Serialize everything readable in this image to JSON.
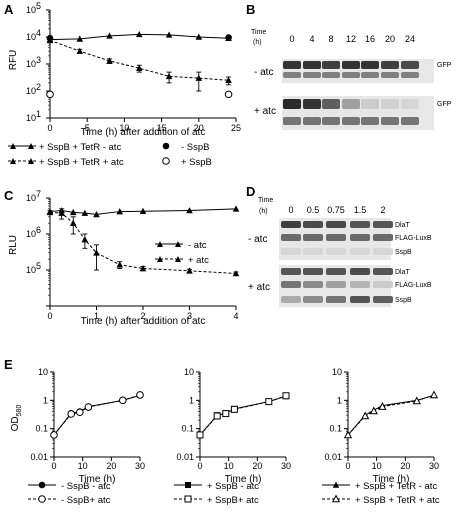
{
  "panels": {
    "A": {
      "label": "A",
      "ylabel": "RFU",
      "xlabel": "Time (h) after addition of atc",
      "xticks": [
        "0",
        "5",
        "10",
        "15",
        "20",
        "25"
      ],
      "yticks": [
        {
          "base": "10",
          "exp": "1"
        },
        {
          "base": "10",
          "exp": "2"
        },
        {
          "base": "10",
          "exp": "3"
        },
        {
          "base": "10",
          "exp": "4"
        },
        {
          "base": "10",
          "exp": "5"
        }
      ]
    },
    "B": {
      "label": "B",
      "time_label": "Time",
      "time_unit": "(h)",
      "times": [
        "0",
        "4",
        "8",
        "12",
        "16",
        "20",
        "24"
      ],
      "conditions": [
        "- atc",
        "+ atc"
      ],
      "band_label": "GFP"
    },
    "C": {
      "label": "C",
      "ylabel": "RLU",
      "xlabel": "Time (h) after addition of atc",
      "xticks": [
        "0",
        "1",
        "2",
        "3",
        "4"
      ],
      "yticks": [
        {
          "base": "10",
          "exp": "5"
        },
        {
          "base": "10",
          "exp": "6"
        },
        {
          "base": "10",
          "exp": "7"
        }
      ]
    },
    "D": {
      "label": "D",
      "time_label": "Time",
      "time_unit": "(h)",
      "times": [
        "0",
        "0.5",
        "0.75",
        "1.5",
        "2"
      ],
      "conditions": [
        "- atc",
        "+ atc"
      ],
      "bands": [
        "DlaT",
        "FLAG-LuxB",
        "SspB"
      ]
    },
    "E": {
      "label": "E",
      "ylabel_main": "OD",
      "ylabel_sub": "580",
      "xlabel": "Time (h)",
      "xticks": [
        "0",
        "10",
        "20",
        "30"
      ],
      "yticks": [
        "0.01",
        "0.1",
        "1",
        "10"
      ]
    }
  },
  "chart_data": [
    {
      "id": "A",
      "type": "line",
      "yscale": "log",
      "xlim": [
        0,
        25
      ],
      "ylim": [
        10,
        100000
      ],
      "series": [
        {
          "name": "+ SspB + TetR - atc",
          "marker": "filled-triangle",
          "line": "solid",
          "x": [
            0,
            4,
            8,
            12,
            16,
            20,
            24
          ],
          "y": [
            8000,
            8500,
            11000,
            12500,
            12000,
            10000,
            9000
          ]
        },
        {
          "name": "+ SspB + TetR + atc",
          "marker": "filled-triangle",
          "line": "dashed",
          "x": [
            0,
            4,
            8,
            12,
            16,
            20,
            24
          ],
          "y": [
            7500,
            3000,
            1300,
            700,
            350,
            300,
            250
          ],
          "err": [
            800,
            500,
            250,
            200,
            150,
            200,
            80
          ]
        },
        {
          "name": "- SspB",
          "marker": "filled-circle",
          "x": [
            0,
            24
          ],
          "y": [
            9000,
            9500
          ]
        },
        {
          "name": "+ SspB",
          "marker": "open-circle",
          "x": [
            0,
            24
          ],
          "y": [
            75,
            75
          ]
        }
      ]
    },
    {
      "id": "C",
      "type": "line",
      "yscale": "log",
      "xlim": [
        0,
        4
      ],
      "ylim": [
        10000,
        10000000
      ],
      "series": [
        {
          "name": "- atc",
          "marker": "filled-triangle",
          "line": "solid",
          "x": [
            0,
            0.25,
            0.5,
            0.75,
            1,
            1.5,
            2,
            3,
            4
          ],
          "y": [
            4200000,
            4500000,
            4000000,
            3800000,
            3500000,
            4200000,
            4300000,
            4500000,
            5000000
          ]
        },
        {
          "name": "+ atc",
          "marker": "filled-triangle",
          "line": "dashed",
          "x": [
            0,
            0.25,
            0.5,
            0.75,
            1,
            1.5,
            2,
            3,
            4
          ],
          "y": [
            4000000,
            3800000,
            2000000,
            700000,
            300000,
            140000,
            110000,
            95000,
            80000
          ],
          "err": [
            500000,
            1200000,
            1000000,
            300000,
            200000,
            30000,
            15000,
            10000,
            8000
          ]
        }
      ]
    },
    {
      "id": "E1",
      "type": "line",
      "yscale": "log",
      "xlim": [
        0,
        30
      ],
      "ylim": [
        0.01,
        10
      ],
      "series": [
        {
          "name": "- SspB - atc",
          "marker": "filled-circle",
          "line": "solid",
          "x": [
            0,
            6,
            9,
            12,
            24,
            30
          ],
          "y": [
            0.06,
            0.35,
            0.4,
            0.6,
            1.0,
            1.5
          ]
        },
        {
          "name": "- SspB+ atc",
          "marker": "open-circle",
          "line": "dashed",
          "x": [
            0,
            6,
            9,
            12,
            24,
            30
          ],
          "y": [
            0.06,
            0.33,
            0.38,
            0.58,
            1.0,
            1.55
          ]
        }
      ]
    },
    {
      "id": "E2",
      "type": "line",
      "yscale": "log",
      "xlim": [
        0,
        30
      ],
      "ylim": [
        0.01,
        10
      ],
      "series": [
        {
          "name": "+ SspB - atc",
          "marker": "filled-square",
          "line": "solid",
          "x": [
            0,
            6,
            9,
            12,
            24,
            30
          ],
          "y": [
            0.06,
            0.3,
            0.35,
            0.5,
            0.9,
            1.4
          ]
        },
        {
          "name": "+ SspB+ atc",
          "marker": "open-square",
          "line": "dashed",
          "x": [
            0,
            6,
            9,
            12,
            24,
            30
          ],
          "y": [
            0.06,
            0.28,
            0.34,
            0.48,
            0.9,
            1.45
          ]
        }
      ]
    },
    {
      "id": "E3",
      "type": "line",
      "yscale": "log",
      "xlim": [
        0,
        30
      ],
      "ylim": [
        0.01,
        10
      ],
      "series": [
        {
          "name": "+ SspB + TetR - atc",
          "marker": "filled-triangle",
          "line": "solid",
          "x": [
            0,
            6,
            9,
            12,
            24,
            30
          ],
          "y": [
            0.06,
            0.3,
            0.45,
            0.65,
            1.0,
            1.5
          ]
        },
        {
          "name": "+ SspB + TetR + atc",
          "marker": "open-triangle",
          "line": "dashed",
          "x": [
            0,
            6,
            9,
            12,
            24,
            30
          ],
          "y": [
            0.06,
            0.28,
            0.42,
            0.6,
            0.95,
            1.55
          ]
        }
      ]
    }
  ],
  "blots": {
    "B": {
      "minus_atc": {
        "gfp": [
          0.85,
          0.85,
          0.8,
          0.85,
          0.85,
          0.8,
          0.75
        ],
        "load": [
          0.5,
          0.5,
          0.5,
          0.5,
          0.5,
          0.5,
          0.5
        ]
      },
      "plus_atc": {
        "gfp": [
          0.9,
          0.85,
          0.65,
          0.35,
          0.15,
          0.12,
          0.1
        ],
        "load": [
          0.55,
          0.55,
          0.55,
          0.55,
          0.55,
          0.55,
          0.55
        ]
      }
    },
    "D": {
      "minus_atc": {
        "DlaT": [
          0.8,
          0.75,
          0.75,
          0.7,
          0.7
        ],
        "FLAG-LuxB": [
          0.6,
          0.6,
          0.6,
          0.6,
          0.6
        ],
        "SspB": [
          0.1,
          0.1,
          0.1,
          0.1,
          0.1
        ]
      },
      "plus_atc": {
        "DlaT": [
          0.7,
          0.7,
          0.7,
          0.75,
          0.7
        ],
        "FLAG-LuxB": [
          0.55,
          0.45,
          0.35,
          0.25,
          0.15
        ],
        "SspB": [
          0.3,
          0.45,
          0.55,
          0.7,
          0.65
        ]
      }
    }
  }
}
